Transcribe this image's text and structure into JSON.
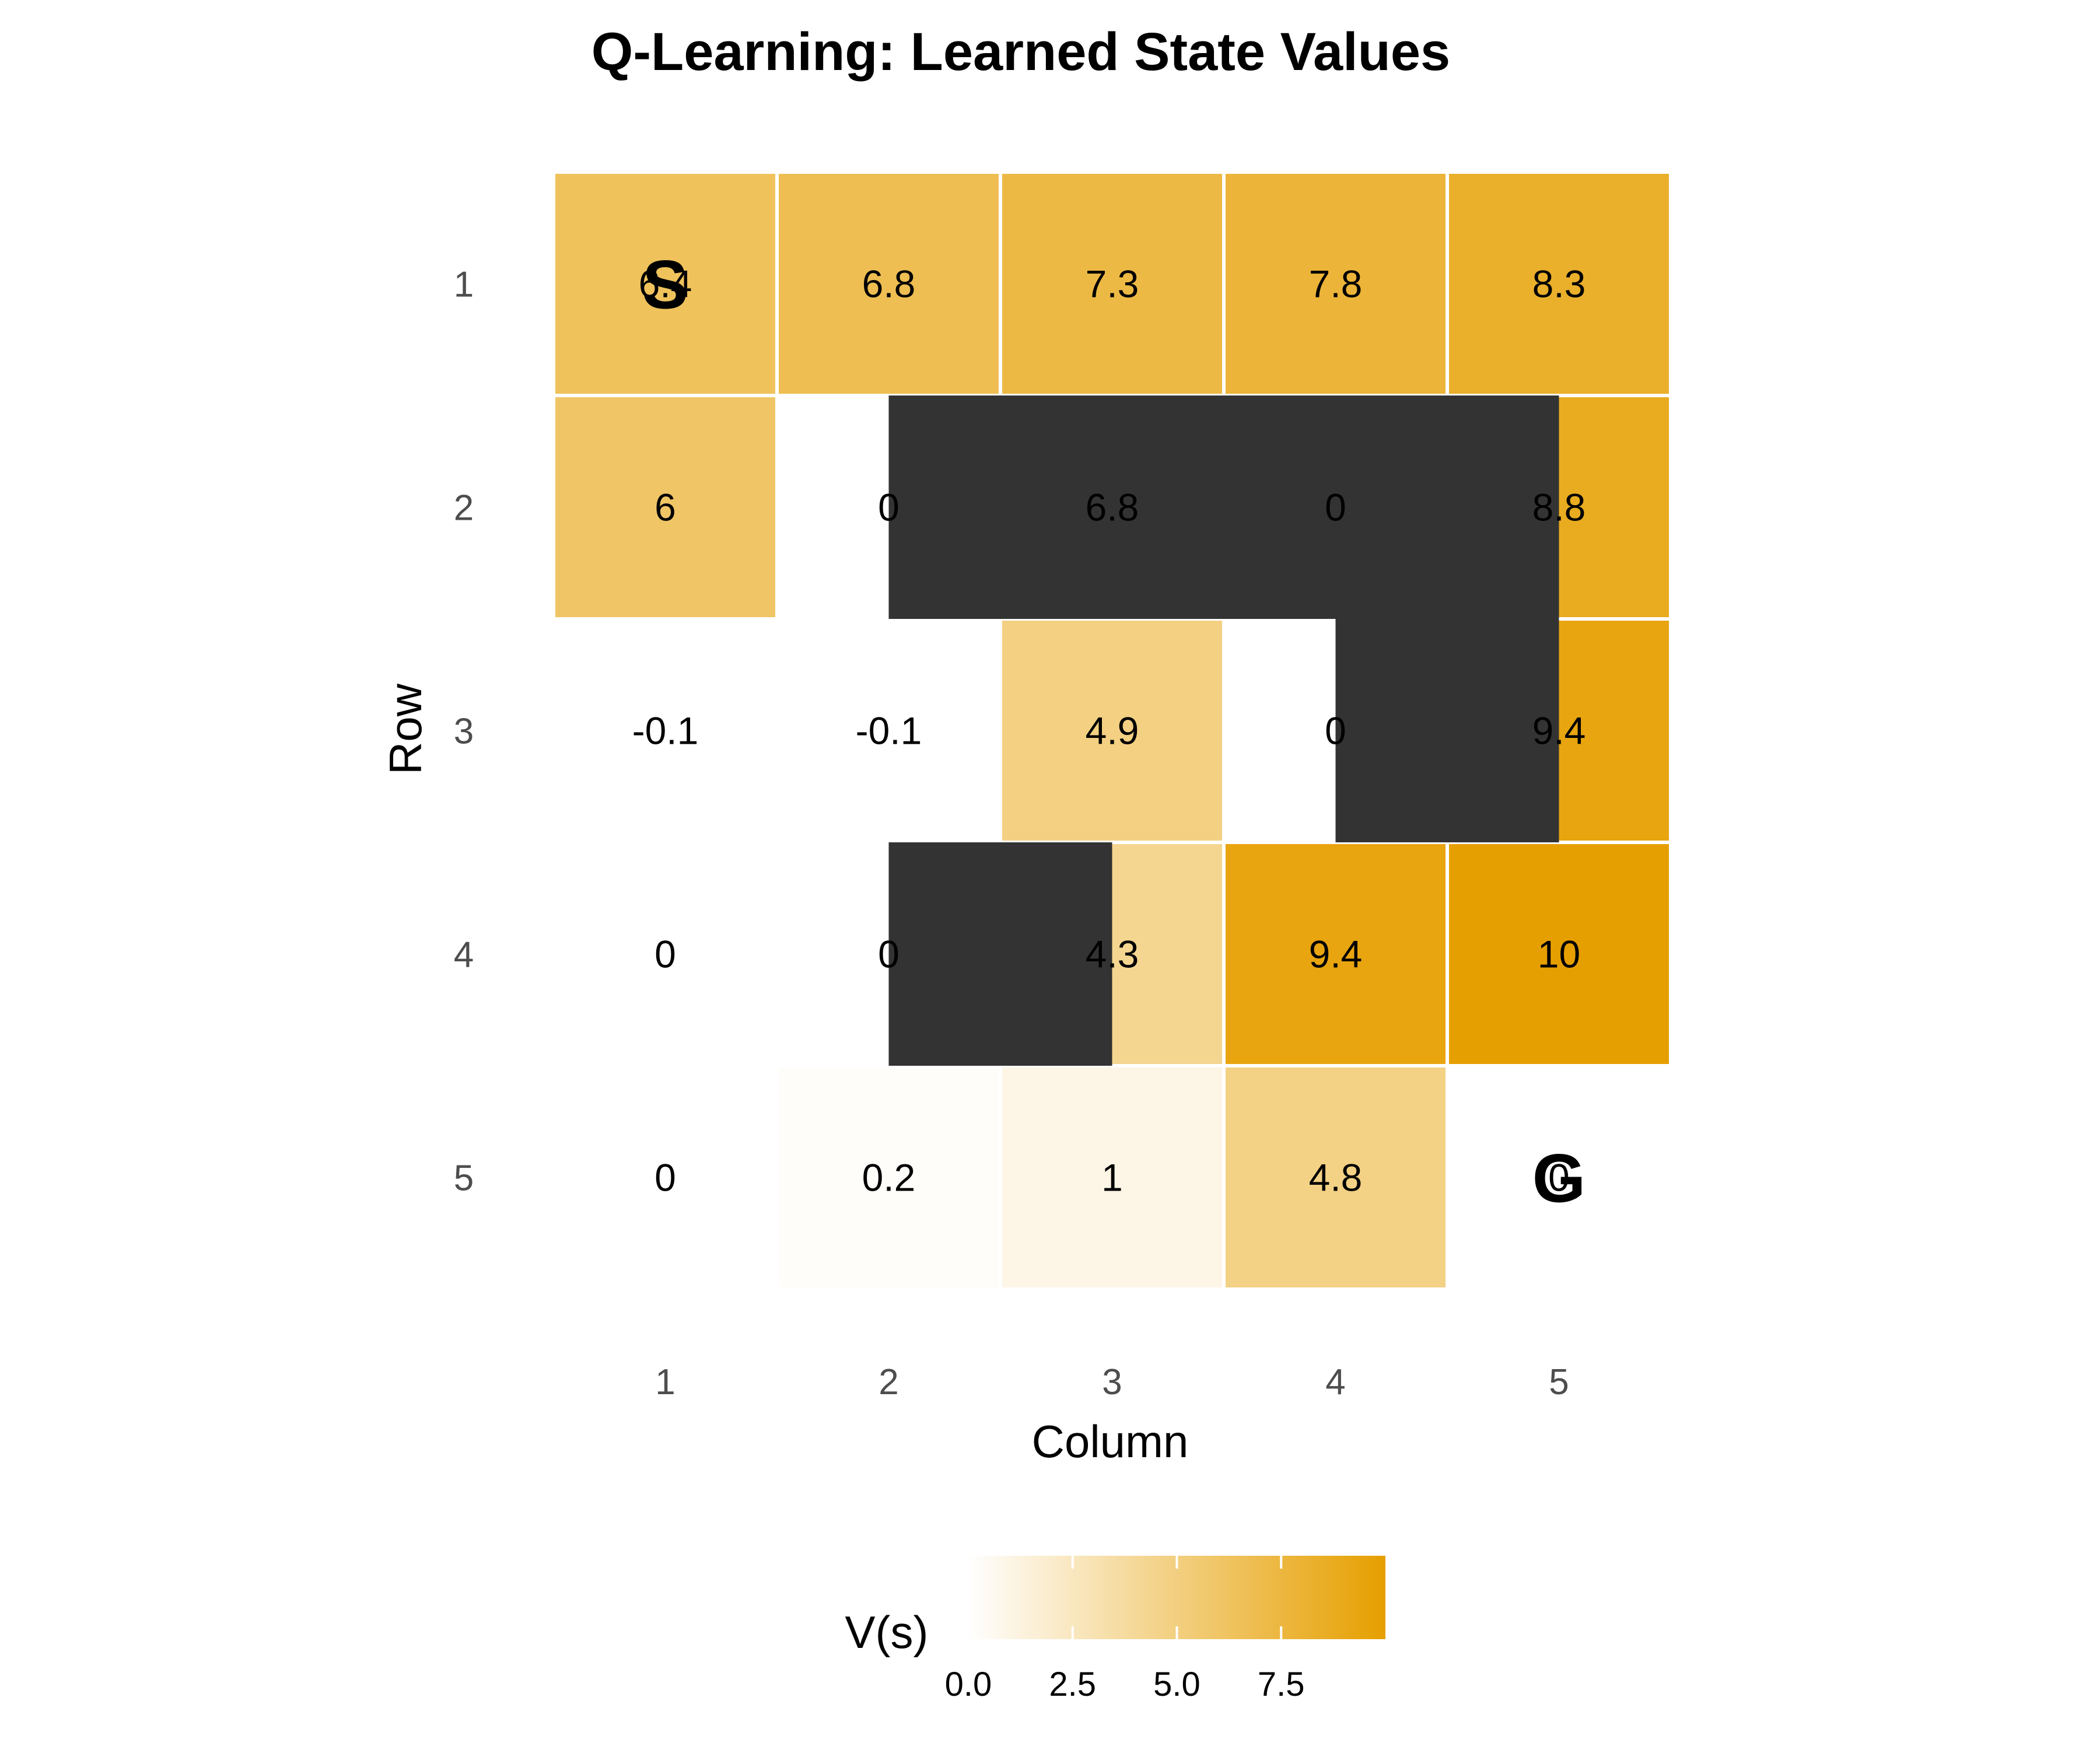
{
  "chart_data": {
    "type": "heatmap",
    "title": "Q-Learning: Learned State Values",
    "xlabel": "Column",
    "ylabel": "Row",
    "x_categories": [
      "1",
      "2",
      "3",
      "4",
      "5"
    ],
    "y_categories": [
      "1",
      "2",
      "3",
      "4",
      "5"
    ],
    "cells": [
      {
        "row": 1,
        "col": 1,
        "value": 6.4,
        "label": "6.4"
      },
      {
        "row": 1,
        "col": 2,
        "value": 6.8,
        "label": "6.8"
      },
      {
        "row": 1,
        "col": 3,
        "value": 7.3,
        "label": "7.3"
      },
      {
        "row": 1,
        "col": 4,
        "value": 7.8,
        "label": "7.8"
      },
      {
        "row": 1,
        "col": 5,
        "value": 8.3,
        "label": "8.3"
      },
      {
        "row": 2,
        "col": 1,
        "value": 6.0,
        "label": "6"
      },
      {
        "row": 2,
        "col": 2,
        "value": 0,
        "label": "0"
      },
      {
        "row": 2,
        "col": 3,
        "value": 6.8,
        "label": "6.8"
      },
      {
        "row": 2,
        "col": 4,
        "value": 0,
        "label": "0"
      },
      {
        "row": 2,
        "col": 5,
        "value": 8.8,
        "label": "8.8"
      },
      {
        "row": 3,
        "col": 1,
        "value": -0.1,
        "label": "-0.1"
      },
      {
        "row": 3,
        "col": 2,
        "value": -0.1,
        "label": "-0.1"
      },
      {
        "row": 3,
        "col": 3,
        "value": 4.9,
        "label": "4.9"
      },
      {
        "row": 3,
        "col": 4,
        "value": 0,
        "label": "0"
      },
      {
        "row": 3,
        "col": 5,
        "value": 9.4,
        "label": "9.4"
      },
      {
        "row": 4,
        "col": 1,
        "value": 0,
        "label": "0"
      },
      {
        "row": 4,
        "col": 2,
        "value": 0,
        "label": "0"
      },
      {
        "row": 4,
        "col": 3,
        "value": 4.3,
        "label": "4.3"
      },
      {
        "row": 4,
        "col": 4,
        "value": 9.4,
        "label": "9.4"
      },
      {
        "row": 4,
        "col": 5,
        "value": 10,
        "label": "10"
      },
      {
        "row": 5,
        "col": 1,
        "value": 0,
        "label": "0"
      },
      {
        "row": 5,
        "col": 2,
        "value": 0.2,
        "label": "0.2"
      },
      {
        "row": 5,
        "col": 3,
        "value": 1,
        "label": "1"
      },
      {
        "row": 5,
        "col": 4,
        "value": 4.8,
        "label": "4.8"
      },
      {
        "row": 5,
        "col": 5,
        "value": 0,
        "label": "0"
      }
    ],
    "walls": [
      {
        "row": 2,
        "col_start": 1.5,
        "col_end": 4.5
      },
      {
        "row": 3,
        "col_start": 3.5,
        "col_end": 4.5
      },
      {
        "row": 4,
        "col_start": 1.5,
        "col_end": 2.5
      }
    ],
    "markers": [
      {
        "label": "S",
        "row": 1,
        "col": 1
      },
      {
        "label": "G",
        "row": 5,
        "col": 5
      }
    ],
    "colorscale": {
      "low": "#ffffff",
      "high": "#e69f00",
      "domain": [
        0,
        10
      ]
    },
    "wall_color": "#333333",
    "legend": {
      "title": "V(s)",
      "position": "bottom",
      "ticks": [
        "0.0",
        "2.5",
        "5.0",
        "7.5"
      ],
      "tick_values": [
        0,
        2.5,
        5.0,
        7.5
      ]
    }
  }
}
